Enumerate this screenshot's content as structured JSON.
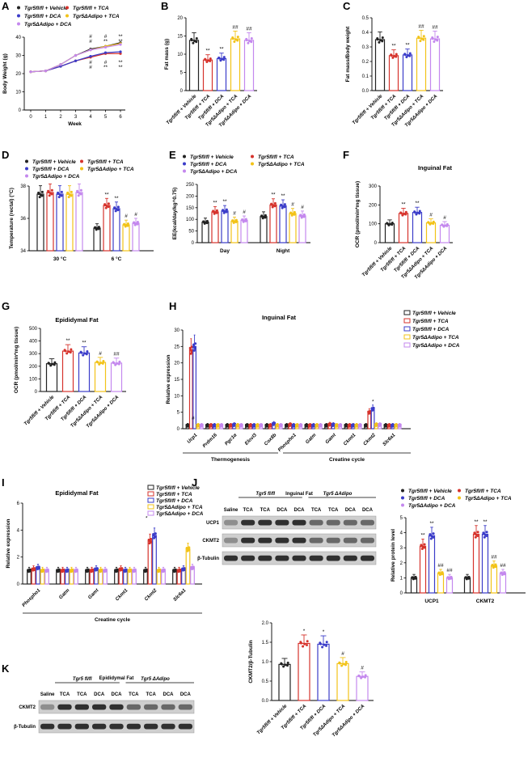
{
  "colors": {
    "veh": "#222222",
    "tca": "#d6332c",
    "dca": "#3b3cc9",
    "atca": "#f2c318",
    "adca": "#c488ee"
  },
  "panels": {
    "A": "A",
    "B": "B",
    "C": "C",
    "D": "D",
    "E": "E",
    "F": "F",
    "G": "G",
    "H": "H",
    "I": "I",
    "J": "J",
    "K": "K"
  },
  "groups": [
    "Tgr5fl/fl + Vehicle",
    "Tgr5fl/fl + TCA",
    "Tgr5fl/fl + DCA",
    "Tgr5ΔAdipo + TCA",
    "Tgr5ΔAdipo + DCA"
  ],
  "legend": {
    "veh": "Tgr5fl/fl + Vehicle",
    "tca": "Tgr5fl/fl + TCA",
    "dca": "Tgr5fl/fl + DCA",
    "atca": "Tgr5ΔAdipo + TCA",
    "adca": "Tgr5ΔAdipo + DCA"
  },
  "groupTags": {
    "flfl": "Tgr5 fl/fl",
    "adipo": "Tgr5 ΔAdipo"
  },
  "chart_data": [
    {
      "id": "A",
      "type": "line",
      "title": "",
      "xlabel": "Week",
      "ylabel": "Body Weight (g)",
      "x": [
        0,
        1,
        2,
        3,
        4,
        5,
        6
      ],
      "ylim": [
        0,
        40
      ],
      "yticks": [
        0,
        10,
        20,
        30,
        40
      ],
      "series": [
        {
          "name": "Tgr5fl/fl + Vehicle",
          "values": [
            21,
            21.5,
            25,
            30,
            33.5,
            35,
            37
          ]
        },
        {
          "name": "Tgr5fl/fl + TCA",
          "values": [
            21,
            21.5,
            24,
            27,
            29,
            31,
            31
          ]
        },
        {
          "name": "Tgr5fl/fl + DCA",
          "values": [
            21,
            21.5,
            24,
            27,
            29.5,
            31.5,
            32
          ]
        },
        {
          "name": "Tgr5ΔAdipo + TCA",
          "values": [
            21,
            21.5,
            25,
            30,
            33,
            35,
            36.5
          ]
        },
        {
          "name": "Tgr5ΔAdipo + DCA",
          "values": [
            21,
            21.5,
            25,
            30,
            33,
            34.5,
            36
          ]
        }
      ],
      "annotations": [
        "#",
        "#",
        "#",
        "**",
        "**",
        "**",
        "#",
        "#",
        "#",
        "**",
        "**",
        "**"
      ]
    },
    {
      "id": "B",
      "type": "bar",
      "ylabel": "Fat mass (g)",
      "ylim": [
        0,
        20
      ],
      "yticks": [
        0,
        5,
        10,
        15,
        20
      ],
      "values": [
        13.8,
        8.4,
        8.8,
        14.2,
        13.8
      ],
      "sig": [
        "",
        "**",
        "**",
        "##",
        "##"
      ]
    },
    {
      "id": "C",
      "type": "bar",
      "ylabel": "Fat mass/Body weight",
      "ylim": [
        0,
        0.5
      ],
      "yticks": [
        0.0,
        0.1,
        0.2,
        0.3,
        0.4,
        0.5
      ],
      "values": [
        0.35,
        0.24,
        0.245,
        0.36,
        0.355
      ],
      "sig": [
        "",
        "**",
        "**",
        "##",
        "##"
      ]
    },
    {
      "id": "D",
      "type": "bar",
      "ylabel": "Temperature (rectal) (°C)",
      "ylim": [
        34,
        38
      ],
      "yticks": [
        34,
        36,
        38
      ],
      "xticks_extra": [
        "30 °C",
        "6 °C"
      ],
      "categories": [
        "30 °C",
        "6 °C"
      ],
      "series": [
        {
          "name": "Tgr5fl/fl + Vehicle",
          "values": [
            37.5,
            35.4
          ]
        },
        {
          "name": "Tgr5fl/fl + TCA",
          "values": [
            37.6,
            36.8
          ]
        },
        {
          "name": "Tgr5fl/fl + DCA",
          "values": [
            37.5,
            36.6
          ]
        },
        {
          "name": "Tgr5ΔAdipo + TCA",
          "values": [
            37.5,
            35.6
          ]
        },
        {
          "name": "Tgr5ΔAdipo + DCA",
          "values": [
            37.6,
            35.7
          ]
        }
      ],
      "sig": [
        [
          "",
          "",
          "",
          "",
          ""
        ],
        [
          "",
          "**",
          "**",
          "#",
          "#"
        ]
      ]
    },
    {
      "id": "E",
      "type": "bar",
      "ylabel": "EE(kcal/day/kg^0.75)",
      "ylim": [
        0,
        250
      ],
      "yticks": [
        0,
        50,
        100,
        150,
        200,
        250
      ],
      "categories": [
        "Day",
        "Night"
      ],
      "series": [
        {
          "name": "Tgr5fl/fl + Vehicle",
          "values": [
            88,
            112
          ]
        },
        {
          "name": "Tgr5fl/fl + TCA",
          "values": [
            132,
            162
          ]
        },
        {
          "name": "Tgr5fl/fl + DCA",
          "values": [
            136,
            158
          ]
        },
        {
          "name": "Tgr5ΔAdipo + TCA",
          "values": [
            92,
            125
          ]
        },
        {
          "name": "Tgr5ΔAdipo + DCA",
          "values": [
            96,
            115
          ]
        }
      ],
      "sig": [
        [
          "",
          "**",
          "**",
          "#",
          "#"
        ],
        [
          "",
          "**",
          "**",
          "#",
          "#"
        ]
      ]
    },
    {
      "id": "F",
      "type": "bar",
      "title": "Inguinal Fat",
      "ylabel": "OCR (pmol/min*mg tissue)",
      "ylim": [
        0,
        300
      ],
      "yticks": [
        0,
        100,
        200,
        300
      ],
      "values": [
        100,
        155,
        160,
        105,
        92
      ],
      "sig": [
        "",
        "**",
        "**",
        "#",
        "#"
      ]
    },
    {
      "id": "G",
      "type": "bar",
      "title": "Epididymal Fat",
      "ylabel": "OCR (pmol/min*mg tissue)",
      "ylim": [
        0,
        500
      ],
      "yticks": [
        0,
        100,
        200,
        300,
        400,
        500
      ],
      "values": [
        220,
        320,
        305,
        230,
        225
      ],
      "sig": [
        "",
        "**",
        "**",
        "#",
        "##"
      ]
    },
    {
      "id": "H",
      "type": "bar",
      "title": "Inguinal Fat",
      "ylabel": "Relative expression",
      "ylim": [
        0,
        30
      ],
      "yticks": [
        0,
        5,
        10,
        15,
        20,
        25,
        30
      ],
      "categories": [
        "Ucp1",
        "Prdm16",
        "Pgc1α",
        "Elovl3",
        "Cox8b",
        "Phospho1",
        "Gatm",
        "Gamt",
        "Ckmt1",
        "Ckmt2",
        "Slc6a1"
      ],
      "series": [
        {
          "name": "Tgr5fl/fl + Vehicle",
          "values": [
            1,
            1,
            1,
            1,
            1,
            1,
            1,
            1,
            1,
            1,
            1
          ]
        },
        {
          "name": "Tgr5fl/fl + TCA",
          "values": [
            24,
            1,
            1,
            1,
            1,
            1.2,
            1,
            1.3,
            1,
            5,
            1
          ]
        },
        {
          "name": "Tgr5fl/fl + DCA",
          "values": [
            25,
            1,
            1.2,
            1,
            1.5,
            1,
            1,
            1.2,
            1,
            6,
            1
          ]
        },
        {
          "name": "Tgr5ΔAdipo + TCA",
          "values": [
            1,
            1,
            1,
            1,
            1,
            1,
            1,
            1,
            1,
            1.2,
            1
          ]
        },
        {
          "name": "Tgr5ΔAdipo + DCA",
          "values": [
            1,
            1,
            1,
            1,
            1,
            1,
            1,
            1,
            1,
            1.2,
            1
          ]
        }
      ],
      "groupLabels": [
        "Thermogenesis",
        "Creatine cycle"
      ]
    },
    {
      "id": "I",
      "type": "bar",
      "title": "Epididymal Fat",
      "ylabel": "Relative expression",
      "ylim": [
        0,
        6
      ],
      "yticks": [
        0,
        2,
        4,
        6
      ],
      "categories": [
        "Phospho1",
        "Gatm",
        "Gamt",
        "Ckmt1",
        "Ckmt2",
        "Slc6a1"
      ],
      "series": [
        {
          "name": "Tgr5fl/fl + Vehicle",
          "values": [
            1,
            1,
            1,
            1,
            1,
            1
          ]
        },
        {
          "name": "Tgr5fl/fl + TCA",
          "values": [
            1.1,
            1,
            1,
            1.1,
            3.2,
            1
          ]
        },
        {
          "name": "Tgr5fl/fl + DCA",
          "values": [
            1.2,
            1,
            1.1,
            1,
            3.6,
            1.1
          ]
        },
        {
          "name": "Tgr5ΔAdipo + TCA",
          "values": [
            1,
            1,
            1,
            1,
            1,
            2.6
          ]
        },
        {
          "name": "Tgr5ΔAdipo + DCA",
          "values": [
            1,
            1,
            1,
            1,
            1,
            1.2
          ]
        }
      ],
      "groupLabels": [
        "Creatine cycle"
      ]
    },
    {
      "id": "J",
      "type": "bar",
      "ylabel": "Relative protein level",
      "ylim": [
        0,
        5
      ],
      "yticks": [
        0,
        1,
        2,
        3,
        4,
        5
      ],
      "categories": [
        "UCP1",
        "CKMT2"
      ],
      "series": [
        {
          "name": "Tgr5fl/fl + Vehicle",
          "values": [
            1,
            1
          ]
        },
        {
          "name": "Tgr5fl/fl + TCA",
          "values": [
            3.1,
            3.9
          ]
        },
        {
          "name": "Tgr5fl/fl + DCA",
          "values": [
            3.8,
            3.9
          ]
        },
        {
          "name": "Tgr5ΔAdipo + TCA",
          "values": [
            1.3,
            1.8
          ]
        },
        {
          "name": "Tgr5ΔAdipo + DCA",
          "values": [
            1.0,
            1.3
          ]
        }
      ],
      "sig": [
        [
          "",
          "**",
          "**",
          "##",
          "##"
        ],
        [
          "",
          "**",
          "**",
          "##",
          "##"
        ]
      ]
    },
    {
      "id": "K",
      "type": "bar",
      "ylabel": "CKMT2/β-Tubulin",
      "ylim": [
        0,
        2.0
      ],
      "yticks": [
        0.0,
        0.5,
        1.0,
        1.5,
        2.0
      ],
      "values": [
        0.93,
        1.47,
        1.45,
        0.95,
        0.62
      ],
      "sig": [
        "",
        "*",
        "*",
        "#",
        "#"
      ]
    }
  ],
  "blotJ": {
    "title": "Inguinal Fat",
    "lanes": [
      "Saline",
      "TCA",
      "TCA",
      "DCA",
      "DCA",
      "TCA",
      "TCA",
      "DCA",
      "DCA"
    ],
    "rows": [
      "UCP1",
      "CKMT2",
      "β-Tubulin"
    ]
  },
  "blotK": {
    "title": "Epididymal Fat",
    "lanes": [
      "Saline",
      "TCA",
      "TCA",
      "DCA",
      "DCA",
      "TCA",
      "TCA",
      "DCA",
      "DCA"
    ],
    "rows": [
      "CKMT2",
      "β-Tubulin"
    ]
  },
  "text": {
    "sigH_ucp1": "#",
    "sigH_ckmt2": "*",
    "sigI_ckmt2": "*"
  }
}
